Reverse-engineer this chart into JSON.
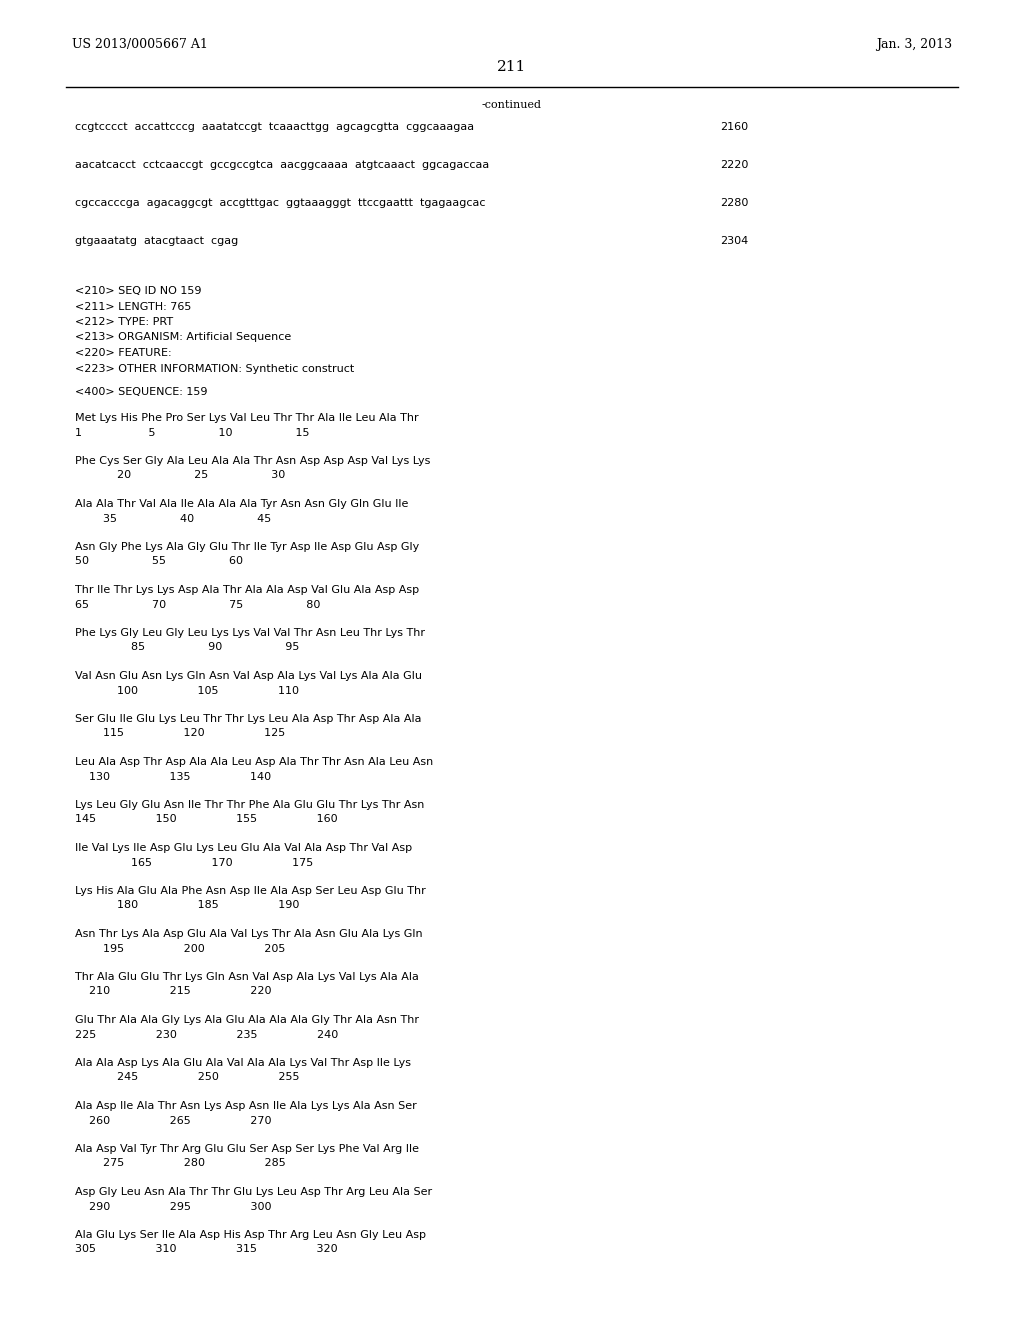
{
  "page_number": "211",
  "left_header": "US 2013/0005667 A1",
  "right_header": "Jan. 3, 2013",
  "continued_label": "-continued",
  "background_color": "#ffffff",
  "text_color": "#000000",
  "font_size_header": 9.0,
  "font_size_body": 8.0,
  "font_size_page_num": 11.0,
  "sequence_lines": [
    {
      "text": "ccgtcccct  accattcccg  aaatatccgt  tcaaacttgg  agcagcgtta  cggcaaagaa",
      "number": "2160"
    },
    {
      "text": "aacatcacct  cctcaaccgt  gccgccgtca  aacggcaaaa  atgtcaaact  ggcagaccaa",
      "number": "2220"
    },
    {
      "text": "cgccacccga  agacaggcgt  accgtttgac  ggtaaagggt  ttccgaattt  tgagaagcac",
      "number": "2280"
    },
    {
      "text": "gtgaaatatg  atacgtaact  cgag",
      "number": "2304"
    }
  ],
  "meta_lines": [
    "<210> SEQ ID NO 159",
    "<211> LENGTH: 765",
    "<212> TYPE: PRT",
    "<213> ORGANISM: Artificial Sequence",
    "<220> FEATURE:",
    "<223> OTHER INFORMATION: Synthetic construct"
  ],
  "sequence_header": "<400> SEQUENCE: 159",
  "protein_blocks": [
    [
      "Met Lys His Phe Pro Ser Lys Val Leu Thr Thr Ala Ile Leu Ala Thr",
      "1                   5                  10                  15"
    ],
    [
      "Phe Cys Ser Gly Ala Leu Ala Ala Thr Asn Asp Asp Asp Val Lys Lys",
      "            20                  25                  30"
    ],
    [
      "Ala Ala Thr Val Ala Ile Ala Ala Ala Tyr Asn Asn Gly Gln Glu Ile",
      "        35                  40                  45"
    ],
    [
      "Asn Gly Phe Lys Ala Gly Glu Thr Ile Tyr Asp Ile Asp Glu Asp Gly",
      "50                  55                  60"
    ],
    [
      "Thr Ile Thr Lys Lys Asp Ala Thr Ala Ala Asp Val Glu Ala Asp Asp",
      "65                  70                  75                  80"
    ],
    [
      "Phe Lys Gly Leu Gly Leu Lys Lys Val Val Thr Asn Leu Thr Lys Thr",
      "                85                  90                  95"
    ],
    [
      "Val Asn Glu Asn Lys Gln Asn Val Asp Ala Lys Val Lys Ala Ala Glu",
      "            100                 105                 110"
    ],
    [
      "Ser Glu Ile Glu Lys Leu Thr Thr Lys Leu Ala Asp Thr Asp Ala Ala",
      "        115                 120                 125"
    ],
    [
      "Leu Ala Asp Thr Asp Ala Ala Leu Asp Ala Thr Thr Asn Ala Leu Asn",
      "    130                 135                 140"
    ],
    [
      "Lys Leu Gly Glu Asn Ile Thr Thr Phe Ala Glu Glu Thr Lys Thr Asn",
      "145                 150                 155                 160"
    ],
    [
      "Ile Val Lys Ile Asp Glu Lys Leu Glu Ala Val Ala Asp Thr Val Asp",
      "                165                 170                 175"
    ],
    [
      "Lys His Ala Glu Ala Phe Asn Asp Ile Ala Asp Ser Leu Asp Glu Thr",
      "            180                 185                 190"
    ],
    [
      "Asn Thr Lys Ala Asp Glu Ala Val Lys Thr Ala Asn Glu Ala Lys Gln",
      "        195                 200                 205"
    ],
    [
      "Thr Ala Glu Glu Thr Lys Gln Asn Val Asp Ala Lys Val Lys Ala Ala",
      "    210                 215                 220"
    ],
    [
      "Glu Thr Ala Ala Gly Lys Ala Glu Ala Ala Ala Gly Thr Ala Asn Thr",
      "225                 230                 235                 240"
    ],
    [
      "Ala Ala Asp Lys Ala Glu Ala Val Ala Ala Lys Val Thr Asp Ile Lys",
      "            245                 250                 255"
    ],
    [
      "Ala Asp Ile Ala Thr Asn Lys Asp Asn Ile Ala Lys Lys Ala Asn Ser",
      "    260                 265                 270"
    ],
    [
      "Ala Asp Val Tyr Thr Arg Glu Glu Ser Asp Ser Lys Phe Val Arg Ile",
      "        275                 280                 285"
    ],
    [
      "Asp Gly Leu Asn Ala Thr Thr Glu Lys Leu Asp Thr Arg Leu Ala Ser",
      "    290                 295                 300"
    ],
    [
      "Ala Glu Lys Ser Ile Ala Asp His Asp Thr Arg Leu Asn Gly Leu Asp",
      "305                 310                 315                 320"
    ]
  ]
}
